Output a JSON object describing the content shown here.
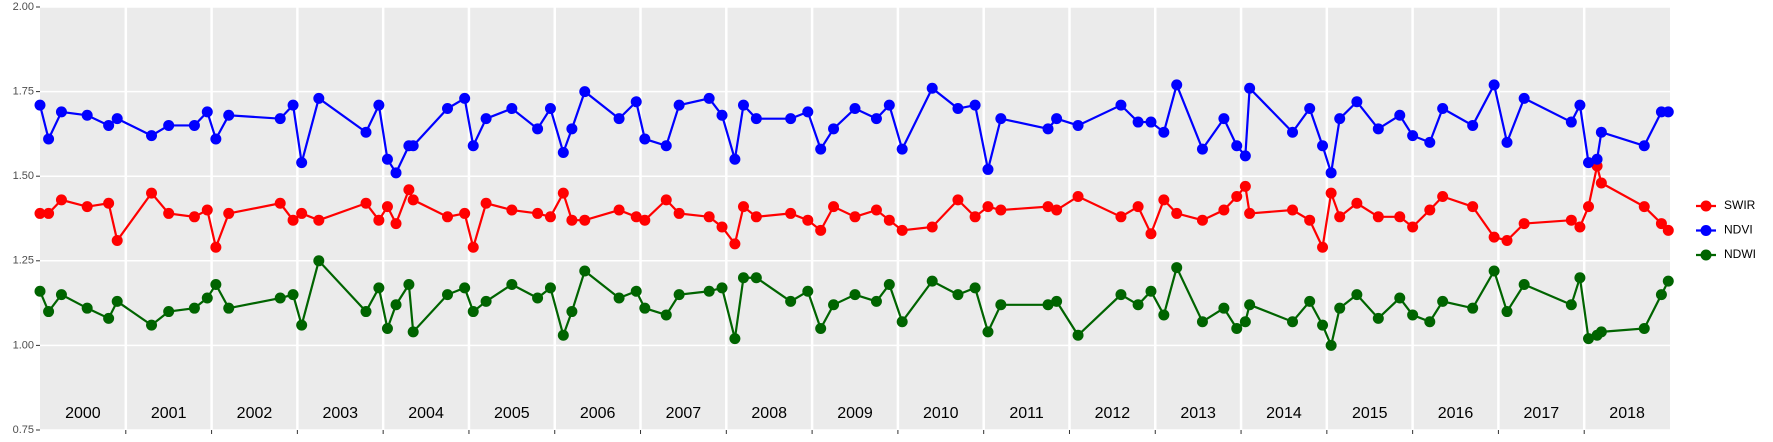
{
  "chart_data": {
    "type": "line",
    "x": [
      2000.0,
      2000.1,
      2000.25,
      2000.55,
      2000.8,
      2000.9,
      2001.3,
      2001.5,
      2001.8,
      2001.95,
      2002.05,
      2002.2,
      2002.8,
      2002.95,
      2003.05,
      2003.25,
      2003.8,
      2003.95,
      2004.05,
      2004.15,
      2004.3,
      2004.35,
      2004.75,
      2004.95,
      2005.05,
      2005.2,
      2005.5,
      2005.8,
      2005.95,
      2006.1,
      2006.2,
      2006.35,
      2006.75,
      2006.95,
      2007.05,
      2007.3,
      2007.45,
      2007.8,
      2007.95,
      2008.1,
      2008.2,
      2008.35,
      2008.75,
      2008.95,
      2009.1,
      2009.25,
      2009.5,
      2009.75,
      2009.9,
      2010.05,
      2010.4,
      2010.7,
      2010.9,
      2011.05,
      2011.2,
      2011.75,
      2011.85,
      2012.1,
      2012.6,
      2012.8,
      2012.95,
      2013.1,
      2013.25,
      2013.55,
      2013.8,
      2013.95,
      2014.05,
      2014.1,
      2014.6,
      2014.8,
      2014.95,
      2015.05,
      2015.15,
      2015.35,
      2015.6,
      2015.85,
      2016.0,
      2016.2,
      2016.35,
      2016.7,
      2016.95,
      2017.1,
      2017.3,
      2017.85,
      2017.95,
      2018.05,
      2018.15,
      2018.2,
      2018.7,
      2018.9,
      2018.98
    ],
    "series": [
      {
        "name": "SWIR",
        "color": "#ff0000",
        "values": [
          1.39,
          1.39,
          1.43,
          1.41,
          1.42,
          1.31,
          1.45,
          1.39,
          1.38,
          1.4,
          1.29,
          1.39,
          1.42,
          1.37,
          1.39,
          1.37,
          1.42,
          1.37,
          1.41,
          1.36,
          1.46,
          1.43,
          1.38,
          1.39,
          1.29,
          1.42,
          1.4,
          1.39,
          1.38,
          1.45,
          1.37,
          1.37,
          1.4,
          1.38,
          1.37,
          1.43,
          1.39,
          1.38,
          1.35,
          1.3,
          1.41,
          1.38,
          1.39,
          1.37,
          1.34,
          1.41,
          1.38,
          1.4,
          1.37,
          1.34,
          1.35,
          1.43,
          1.38,
          1.41,
          1.4,
          1.41,
          1.4,
          1.44,
          1.38,
          1.41,
          1.33,
          1.43,
          1.39,
          1.37,
          1.4,
          1.44,
          1.47,
          1.39,
          1.4,
          1.37,
          1.29,
          1.45,
          1.38,
          1.42,
          1.38,
          1.38,
          1.35,
          1.4,
          1.44,
          1.41,
          1.32,
          1.31,
          1.36,
          1.37,
          1.35,
          1.41,
          1.53,
          1.48,
          1.41,
          1.36,
          1.34
        ]
      },
      {
        "name": "NDVI",
        "color": "#0000ff",
        "values": [
          1.71,
          1.61,
          1.69,
          1.68,
          1.65,
          1.67,
          1.62,
          1.65,
          1.65,
          1.69,
          1.61,
          1.68,
          1.67,
          1.71,
          1.54,
          1.73,
          1.63,
          1.71,
          1.55,
          1.51,
          1.59,
          1.59,
          1.7,
          1.73,
          1.59,
          1.67,
          1.7,
          1.64,
          1.7,
          1.57,
          1.64,
          1.75,
          1.67,
          1.72,
          1.61,
          1.59,
          1.71,
          1.73,
          1.68,
          1.55,
          1.71,
          1.67,
          1.67,
          1.69,
          1.58,
          1.64,
          1.7,
          1.67,
          1.71,
          1.58,
          1.76,
          1.7,
          1.71,
          1.52,
          1.67,
          1.64,
          1.67,
          1.65,
          1.71,
          1.66,
          1.66,
          1.63,
          1.77,
          1.58,
          1.67,
          1.59,
          1.56,
          1.76,
          1.63,
          1.7,
          1.59,
          1.51,
          1.67,
          1.72,
          1.64,
          1.68,
          1.62,
          1.6,
          1.7,
          1.65,
          1.77,
          1.6,
          1.73,
          1.66,
          1.71,
          1.54,
          1.55,
          1.63,
          1.59,
          1.69,
          1.69
        ]
      },
      {
        "name": "NDWI",
        "color": "#006400",
        "values": [
          1.16,
          1.1,
          1.15,
          1.11,
          1.08,
          1.13,
          1.06,
          1.1,
          1.11,
          1.14,
          1.18,
          1.11,
          1.14,
          1.15,
          1.06,
          1.25,
          1.1,
          1.17,
          1.05,
          1.12,
          1.18,
          1.04,
          1.15,
          1.17,
          1.1,
          1.13,
          1.18,
          1.14,
          1.17,
          1.03,
          1.1,
          1.22,
          1.14,
          1.16,
          1.11,
          1.09,
          1.15,
          1.16,
          1.17,
          1.02,
          1.2,
          1.2,
          1.13,
          1.16,
          1.05,
          1.12,
          1.15,
          1.13,
          1.18,
          1.07,
          1.19,
          1.15,
          1.17,
          1.04,
          1.12,
          1.12,
          1.13,
          1.03,
          1.15,
          1.12,
          1.16,
          1.09,
          1.23,
          1.07,
          1.11,
          1.05,
          1.07,
          1.12,
          1.07,
          1.13,
          1.06,
          1.0,
          1.11,
          1.15,
          1.08,
          1.14,
          1.09,
          1.07,
          1.13,
          1.11,
          1.22,
          1.1,
          1.18,
          1.12,
          1.2,
          1.02,
          1.03,
          1.04,
          1.05,
          1.15,
          1.19
        ]
      }
    ],
    "xlim": [
      2000,
      2019
    ],
    "xticks": [
      2001,
      2002,
      2003,
      2004,
      2005,
      2006,
      2007,
      2008,
      2009,
      2010,
      2011,
      2012,
      2013,
      2014,
      2015,
      2016,
      2017,
      2018
    ],
    "year_labels": [
      {
        "value": 2000.5,
        "label": "2000"
      },
      {
        "value": 2001.5,
        "label": "2001"
      },
      {
        "value": 2002.5,
        "label": "2002"
      },
      {
        "value": 2003.5,
        "label": "2003"
      },
      {
        "value": 2004.5,
        "label": "2004"
      },
      {
        "value": 2005.5,
        "label": "2005"
      },
      {
        "value": 2006.5,
        "label": "2006"
      },
      {
        "value": 2007.5,
        "label": "2007"
      },
      {
        "value": 2008.5,
        "label": "2008"
      },
      {
        "value": 2009.5,
        "label": "2009"
      },
      {
        "value": 2010.5,
        "label": "2010"
      },
      {
        "value": 2011.5,
        "label": "2011"
      },
      {
        "value": 2012.5,
        "label": "2012"
      },
      {
        "value": 2013.5,
        "label": "2013"
      },
      {
        "value": 2014.5,
        "label": "2014"
      },
      {
        "value": 2015.5,
        "label": "2015"
      },
      {
        "value": 2016.5,
        "label": "2016"
      },
      {
        "value": 2017.5,
        "label": "2017"
      },
      {
        "value": 2018.5,
        "label": "2018"
      }
    ],
    "ylim": [
      0.75,
      2.0
    ],
    "yticks": [
      {
        "value": 0.75,
        "label": "0.75"
      },
      {
        "value": 1.0,
        "label": "1.00"
      },
      {
        "value": 1.25,
        "label": "1.25"
      },
      {
        "value": 1.5,
        "label": "1.50"
      },
      {
        "value": 1.75,
        "label": "1.75"
      },
      {
        "value": 2.0,
        "label": "2.00"
      }
    ],
    "grid": true,
    "legend": "right"
  }
}
